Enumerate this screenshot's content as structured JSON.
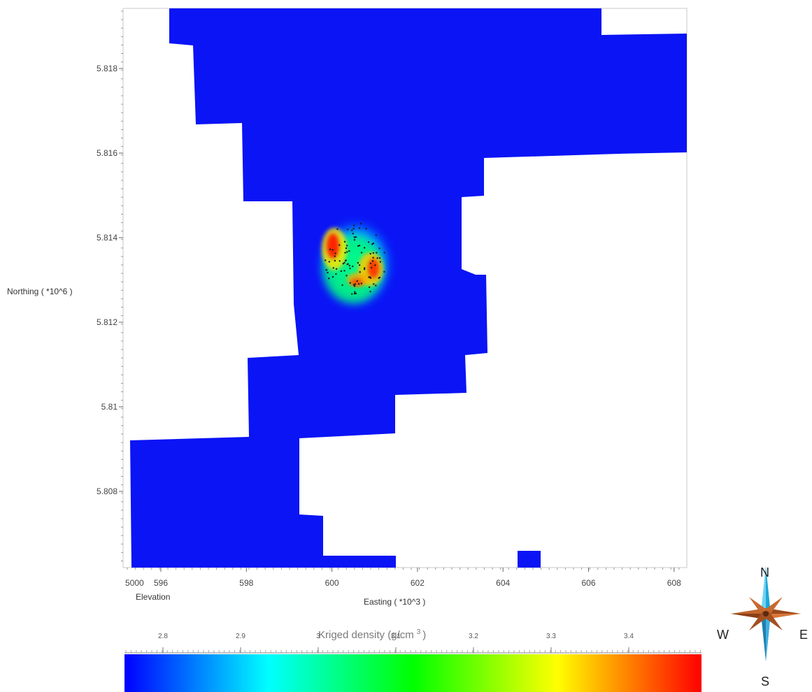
{
  "map": {
    "y_axis_label": "Northing ( *10^6 )",
    "x_axis_label": "Easting ( *10^3 )",
    "elevation_label": "Elevation",
    "elevation_value": "5000",
    "x_ticks": [
      "596",
      "598",
      "600",
      "602",
      "604",
      "606",
      "608"
    ],
    "y_ticks": [
      "5.818",
      "5.816",
      "5.814",
      "5.812",
      "5.81",
      "5.808"
    ],
    "region_color": "#0a14f5",
    "sample_point_color": "#1a1a1a"
  },
  "colorbar": {
    "title": "Kriged  density (g/cm",
    "title_sup": "3",
    "title_close": ")",
    "ticks": [
      "2.8",
      "2.9",
      "3",
      "3.1",
      "3.2",
      "3.3",
      "3.4"
    ],
    "colors": [
      "#0000ff",
      "#00ffff",
      "#00ff00",
      "#ffff00",
      "#ff0000"
    ]
  },
  "compass": {
    "north": "N",
    "south": "S",
    "east": "E",
    "west": "W"
  }
}
